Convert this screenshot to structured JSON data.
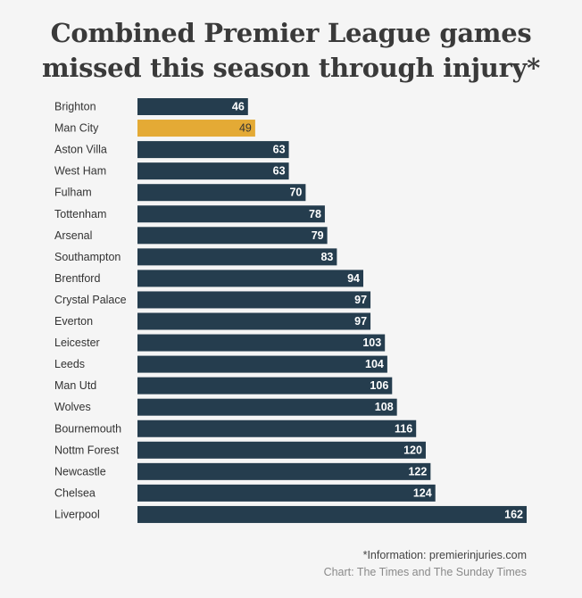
{
  "title": {
    "line1": "Combined Premier League games",
    "line2": "missed this season through injury*"
  },
  "chart_data": {
    "type": "bar",
    "orientation": "horizontal",
    "title": "Combined Premier League games missed this season through injury*",
    "categories": [
      "Brighton",
      "Man City",
      "Aston Villa",
      "West Ham",
      "Fulham",
      "Tottenham",
      "Arsenal",
      "Southampton",
      "Brentford",
      "Crystal Palace",
      "Everton",
      "Leicester",
      "Leeds",
      "Man Utd",
      "Wolves",
      "Bournemouth",
      "Nottm Forest",
      "Newcastle",
      "Chelsea",
      "Liverpool"
    ],
    "values": [
      46,
      49,
      63,
      63,
      70,
      78,
      79,
      83,
      94,
      97,
      97,
      103,
      104,
      106,
      108,
      116,
      120,
      122,
      124,
      162
    ],
    "highlight": "Man City",
    "xlim": [
      0,
      162
    ],
    "grid": false,
    "colors": {
      "bar": "#253d4e",
      "highlight": "#e4aa35",
      "label_on_bar": "#ffffff",
      "label_on_highlight": "#333333",
      "category_text": "#333333"
    }
  },
  "footer": {
    "info": "*Information: premierinjuries.com",
    "credit": "Chart: The Times and The Sunday Times"
  }
}
